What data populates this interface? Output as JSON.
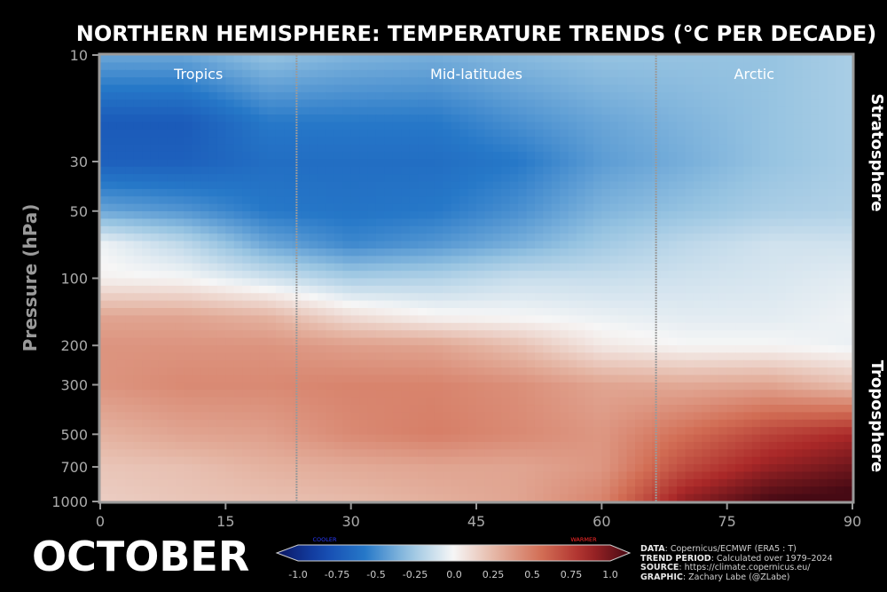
{
  "chart_data": {
    "type": "heatmap",
    "title": "NORTHERN HEMISPHERE: TEMPERATURE TRENDS (°C PER DECADE)",
    "ylabel": "Pressure (hPa)",
    "xlabel": "",
    "x_ticks": [
      0,
      15,
      30,
      45,
      60,
      75,
      90
    ],
    "y_ticks": [
      10,
      30,
      50,
      100,
      200,
      300,
      500,
      700,
      1000
    ],
    "y_scale": "log",
    "y_inverted": true,
    "xlim": [
      0,
      90
    ],
    "ylim": [
      1000,
      10
    ],
    "regions": [
      {
        "name": "Tropics",
        "lat_range": [
          0,
          23.5
        ]
      },
      {
        "name": "Mid-latitudes",
        "lat_range": [
          23.5,
          66.5
        ]
      },
      {
        "name": "Arctic",
        "lat_range": [
          66.5,
          90
        ]
      }
    ],
    "region_dividers": [
      23.5,
      66.5
    ],
    "layer_labels": [
      "Stratosphere",
      "Troposphere"
    ],
    "month": "OCTOBER",
    "colorbar": {
      "ticks": [
        "-1.0",
        "-0.75",
        "-0.5",
        "-0.25",
        "0.0",
        "0.25",
        "0.5",
        "0.75",
        "1.0"
      ],
      "range": [
        -1.0,
        1.0
      ],
      "cooler_label": "COOLER",
      "warmer_label": "WARMER",
      "cooler_color": "#2a3bff",
      "warmer_color": "#ff2a2a"
    },
    "lats": [
      0,
      10,
      20,
      30,
      40,
      50,
      60,
      70,
      80,
      90
    ],
    "pressure_levels": [
      10,
      20,
      30,
      50,
      70,
      100,
      150,
      200,
      300,
      500,
      700,
      1000
    ],
    "values": [
      [
        -0.35,
        -0.35,
        -0.25,
        -0.3,
        -0.32,
        -0.28,
        -0.25,
        -0.25,
        -0.25,
        -0.2
      ],
      [
        -0.65,
        -0.65,
        -0.5,
        -0.5,
        -0.5,
        -0.42,
        -0.35,
        -0.3,
        -0.25,
        -0.2
      ],
      [
        -0.62,
        -0.62,
        -0.55,
        -0.55,
        -0.55,
        -0.5,
        -0.38,
        -0.32,
        -0.25,
        -0.2
      ],
      [
        -0.35,
        -0.4,
        -0.5,
        -0.52,
        -0.5,
        -0.42,
        -0.3,
        -0.25,
        -0.2,
        -0.18
      ],
      [
        -0.02,
        -0.15,
        -0.35,
        -0.45,
        -0.4,
        -0.32,
        -0.22,
        -0.15,
        -0.1,
        -0.1
      ],
      [
        0.02,
        0.0,
        -0.1,
        -0.2,
        -0.18,
        -0.12,
        -0.12,
        -0.1,
        -0.08,
        -0.05
      ],
      [
        0.3,
        0.3,
        0.25,
        0.1,
        0.02,
        0.0,
        -0.03,
        -0.05,
        -0.05,
        -0.02
      ],
      [
        0.36,
        0.36,
        0.36,
        0.32,
        0.3,
        0.2,
        0.05,
        0.0,
        0.0,
        -0.03
      ],
      [
        0.36,
        0.4,
        0.4,
        0.42,
        0.42,
        0.38,
        0.3,
        0.28,
        0.3,
        0.2
      ],
      [
        0.25,
        0.3,
        0.32,
        0.4,
        0.44,
        0.4,
        0.35,
        0.5,
        0.65,
        0.75
      ],
      [
        0.18,
        0.2,
        0.25,
        0.28,
        0.3,
        0.3,
        0.35,
        0.62,
        0.8,
        0.9
      ],
      [
        0.15,
        0.18,
        0.2,
        0.22,
        0.26,
        0.3,
        0.42,
        0.82,
        1.0,
        1.05
      ]
    ]
  },
  "credits": {
    "data_label": "DATA",
    "data_value": ": Copernicus/ECMWF (ERA5 : T)",
    "period_label": "TREND PERIOD",
    "period_value": ": Calculated over 1979–2024",
    "source_label": "SOURCE",
    "source_value": ": https://climate.copernicus.eu/",
    "graphic_label": "GRAPHIC",
    "graphic_value": ": Zachary Labe (@ZLabe)"
  }
}
